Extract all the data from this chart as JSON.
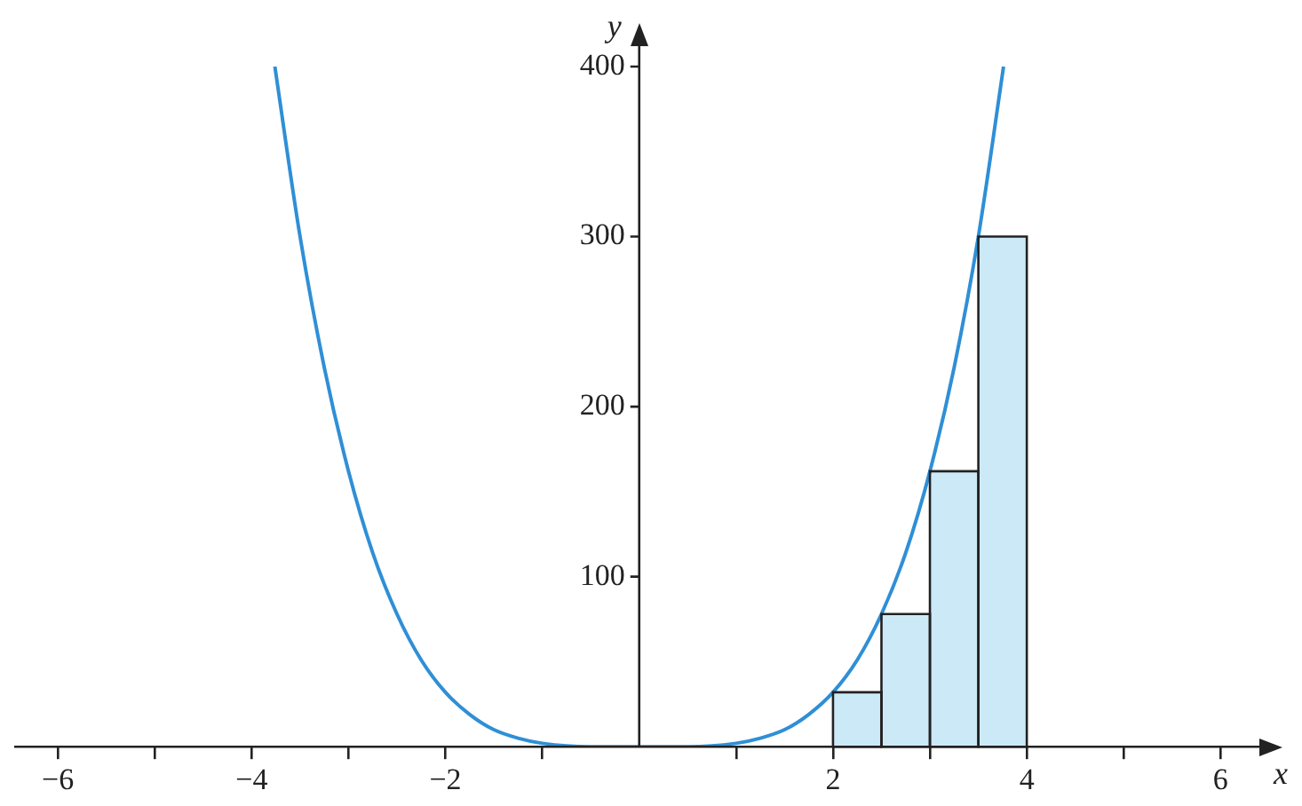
{
  "chart_data": {
    "type": "histogram",
    "xlabel": "x",
    "ylabel": "y",
    "xlim": [
      -6.45,
      6.4
    ],
    "ylim": [
      0,
      412
    ],
    "xticks": [
      {
        "value": -6,
        "label": "−6"
      },
      {
        "value": -5,
        "label": null
      },
      {
        "value": -4,
        "label": "−4"
      },
      {
        "value": -3,
        "label": null
      },
      {
        "value": -2,
        "label": "−2"
      },
      {
        "value": -1,
        "label": null
      },
      {
        "value": 1,
        "label": null
      },
      2,
      {
        "value": 3,
        "label": null
      },
      4,
      {
        "value": 5,
        "label": null
      },
      6
    ],
    "yticks": [
      100,
      200,
      300,
      400
    ],
    "grid": false,
    "legend": false,
    "bins": [
      2,
      2.5,
      3,
      3.5,
      4
    ],
    "values": [
      32,
      78,
      162,
      300
    ],
    "color": "#cce9f8",
    "series": [
      {
        "type": "line",
        "color": "#2f8fd6",
        "x": [
          -3.76,
          -3.5,
          -3.25,
          -3,
          -2.75,
          -2.5,
          -2.25,
          -2,
          -1.75,
          -1.5,
          -1.25,
          -1,
          -0.5,
          0,
          0.5,
          1,
          1.25,
          1.5,
          1.75,
          2,
          2.25,
          2.5,
          2.75,
          3,
          3.25,
          3.5,
          3.76
        ],
        "values": [
          400,
          300,
          223,
          162,
          114,
          78,
          51,
          32,
          19,
          10,
          5,
          2,
          0,
          0,
          0,
          2,
          5,
          10,
          19,
          32,
          51,
          78,
          114,
          162,
          223,
          300,
          400
        ]
      }
    ]
  }
}
